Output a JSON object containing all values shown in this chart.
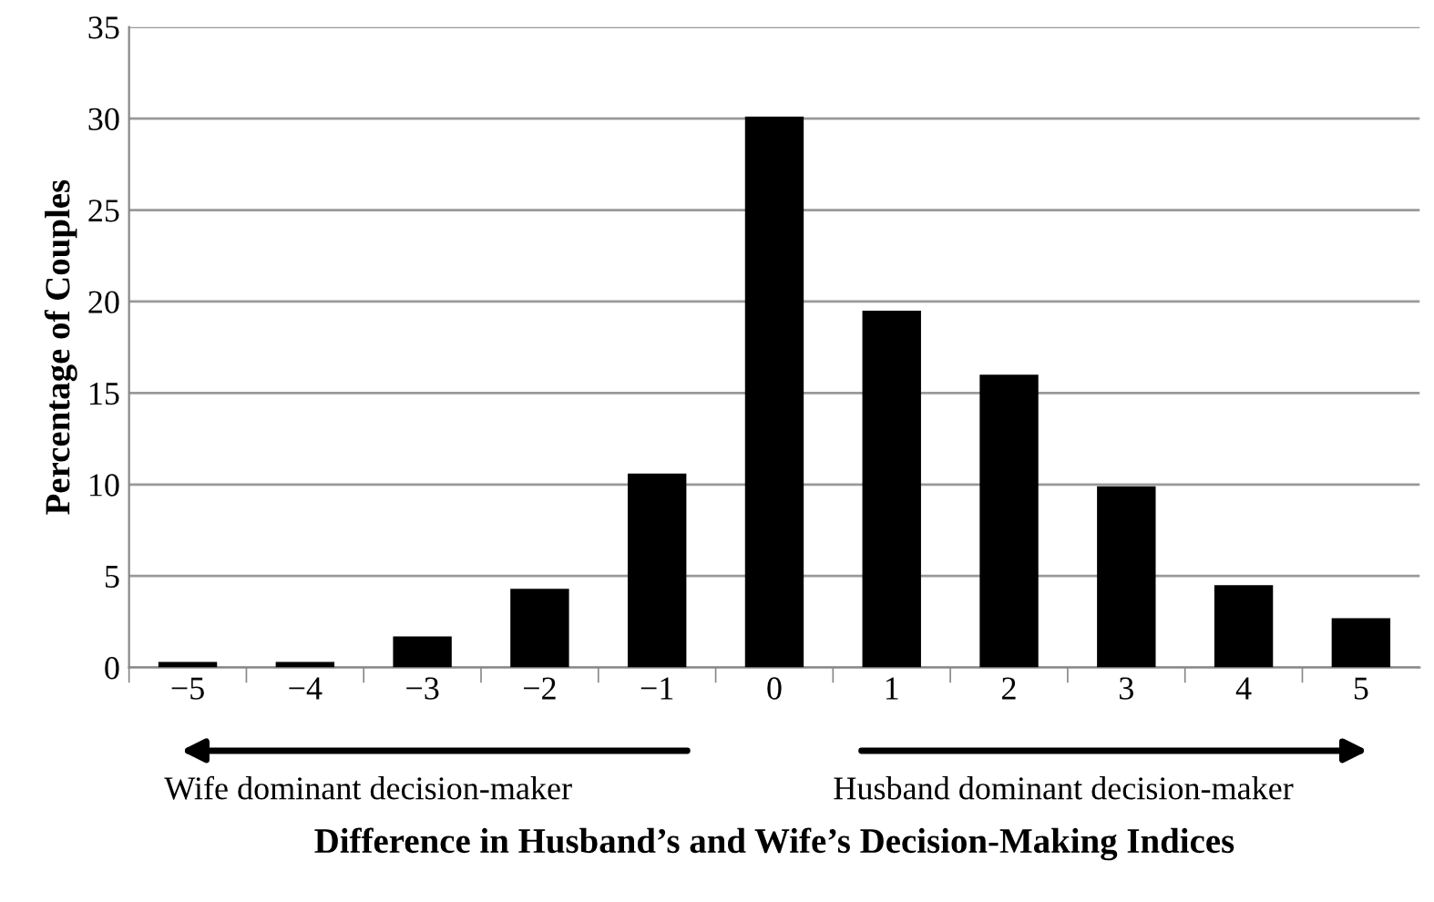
{
  "chart_data": {
    "type": "bar",
    "xlabel": "Difference in Husband’s and Wife’s Decision-Making Indices",
    "ylabel": "Percentage of Couples",
    "categories": [
      "−5",
      "−4",
      "−3",
      "−2",
      "−1",
      "0",
      "1",
      "2",
      "3",
      "4",
      "5"
    ],
    "values": [
      0.3,
      0.3,
      1.7,
      4.3,
      10.6,
      30.1,
      19.5,
      16.0,
      9.9,
      4.5,
      2.7
    ],
    "color": "#000000",
    "ylim": [
      0,
      35
    ],
    "yticks": [
      0,
      5,
      10,
      15,
      20,
      25,
      30,
      35
    ],
    "grid": "y",
    "annotations": [
      "Wife dominant decision-maker",
      "Husband dominant decision-maker"
    ]
  }
}
